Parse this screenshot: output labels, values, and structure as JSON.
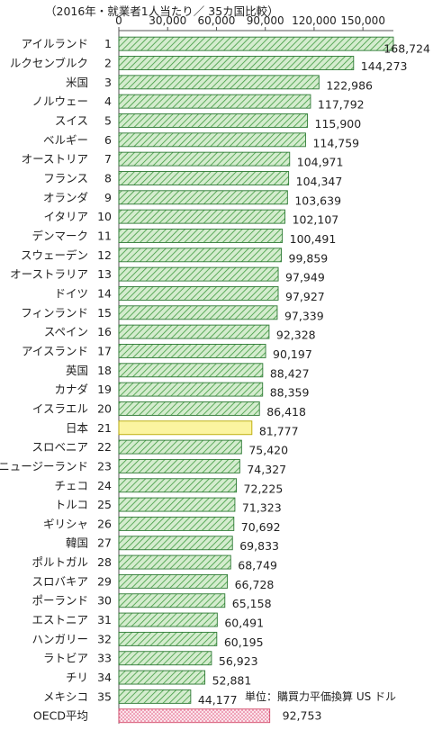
{
  "caption": "（2016年・就業者1人当たり／ 35カ国比較）",
  "unit_note": "単位：購買力平価換算 US ドル",
  "colors": {
    "bar_fill": "#d4ecce",
    "bar_hatch": "#3f9a3f",
    "bar_stroke": "#2f7a36",
    "japan_fill": "#fbf4a0",
    "japan_stroke": "#b8a800",
    "oecd_fill": "#fbe3ea",
    "oecd_dots": "#e0557c",
    "oecd_stroke": "#d34a6a",
    "axis": "#555555"
  },
  "chart_data": {
    "type": "bar",
    "orientation": "horizontal",
    "xlim": [
      0,
      168724
    ],
    "xticks": [
      "0",
      "30,000",
      "60,000",
      "90,000",
      "120,000",
      "150,000"
    ],
    "xtick_values": [
      0,
      30000,
      60000,
      90000,
      120000,
      150000
    ],
    "grid": false,
    "categories": [
      "アイルランド",
      "ルクセンブルク",
      "米国",
      "ノルウェー",
      "スイス",
      "ベルギー",
      "オーストリア",
      "フランス",
      "オランダ",
      "イタリア",
      "デンマーク",
      "スウェーデン",
      "オーストラリア",
      "ドイツ",
      "フィンランド",
      "スペイン",
      "アイスランド",
      "英国",
      "カナダ",
      "イスラエル",
      "日本",
      "スロベニア",
      "ニュージーランド",
      "チェコ",
      "トルコ",
      "ギリシャ",
      "韓国",
      "ポルトガル",
      "スロバキア",
      "ポーランド",
      "エストニア",
      "ハンガリー",
      "ラトビア",
      "チリ",
      "メキシコ",
      "OECD平均"
    ],
    "ranks": [
      "1",
      "2",
      "3",
      "4",
      "5",
      "6",
      "7",
      "8",
      "9",
      "10",
      "11",
      "12",
      "13",
      "14",
      "15",
      "16",
      "17",
      "18",
      "19",
      "20",
      "21",
      "22",
      "23",
      "24",
      "25",
      "26",
      "27",
      "28",
      "29",
      "30",
      "31",
      "32",
      "33",
      "34",
      "35",
      ""
    ],
    "values": [
      168724,
      144273,
      122986,
      117792,
      115900,
      114759,
      104971,
      104347,
      103639,
      102107,
      100491,
      99859,
      97949,
      97927,
      97339,
      92328,
      90197,
      88427,
      88359,
      86418,
      81777,
      75420,
      74327,
      72225,
      71323,
      70692,
      69833,
      68749,
      66728,
      65158,
      60491,
      60195,
      56923,
      52881,
      44177,
      92753
    ],
    "value_labels": [
      "168,724",
      "144,273",
      "122,986",
      "117,792",
      "115,900",
      "114,759",
      "104,971",
      "104,347",
      "103,639",
      "102,107",
      "100,491",
      "99,859",
      "97,949",
      "97,927",
      "97,339",
      "92,328",
      "90,197",
      "88,427",
      "88,359",
      "86,418",
      "81,777",
      "75,420",
      "74,327",
      "72,225",
      "71,323",
      "70,692",
      "69,833",
      "68,749",
      "66,728",
      "65,158",
      "60,491",
      "60,195",
      "56,923",
      "52,881",
      "44,177",
      "92,753"
    ],
    "styles": [
      "hatch",
      "hatch",
      "hatch",
      "hatch",
      "hatch",
      "hatch",
      "hatch",
      "hatch",
      "hatch",
      "hatch",
      "hatch",
      "hatch",
      "hatch",
      "hatch",
      "hatch",
      "hatch",
      "hatch",
      "hatch",
      "hatch",
      "hatch",
      "highlight",
      "hatch",
      "hatch",
      "hatch",
      "hatch",
      "hatch",
      "hatch",
      "hatch",
      "hatch",
      "hatch",
      "hatch",
      "hatch",
      "hatch",
      "hatch",
      "hatch",
      "dots"
    ]
  }
}
